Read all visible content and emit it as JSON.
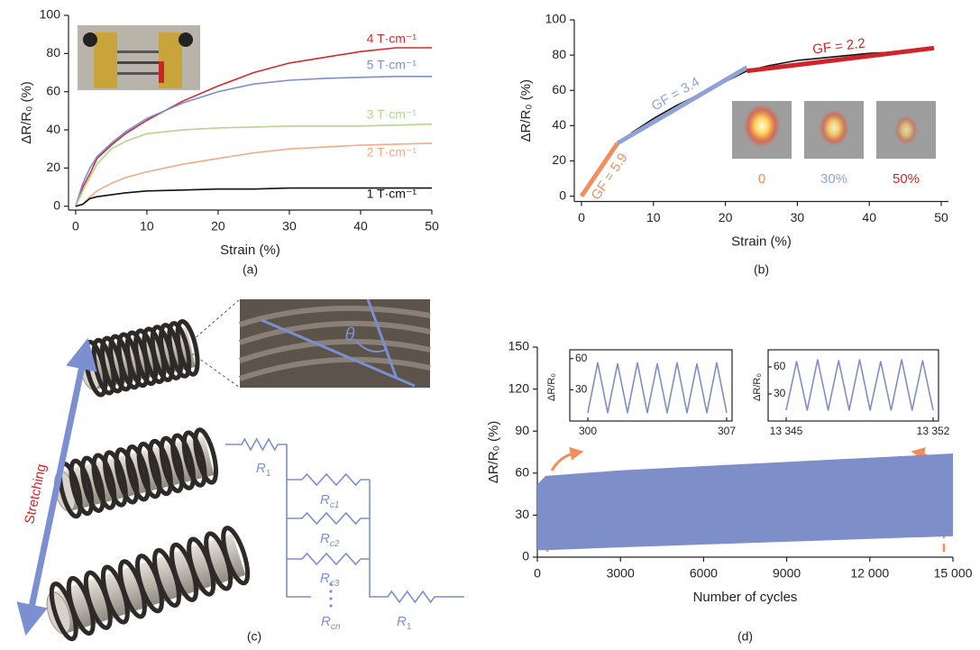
{
  "chart_data": [
    {
      "type": "line",
      "label": "(a)",
      "x_label": "Strain (%)",
      "y_label": "ΔR/R₀ (%)",
      "x": [
        0,
        1,
        2,
        3,
        5,
        7,
        10,
        15,
        20,
        25,
        30,
        35,
        40,
        45,
        50
      ],
      "series": [
        {
          "name": "4 T·cm⁻¹",
          "color": "#d42a2e",
          "values": [
            0,
            10,
            17,
            25,
            32,
            38,
            45,
            55,
            63,
            70,
            75,
            78,
            81,
            83,
            83
          ]
        },
        {
          "name": "5 T·cm⁻¹",
          "color": "#7b8fd1",
          "values": [
            0,
            12,
            20,
            26,
            33,
            39,
            46,
            54,
            60,
            64,
            66,
            67,
            67.5,
            68,
            68
          ]
        },
        {
          "name": "3 T·cm⁻¹",
          "color": "#b3d78c",
          "values": [
            0,
            8,
            15,
            22,
            30,
            34,
            38,
            40,
            41,
            41.5,
            42,
            42,
            42,
            42.5,
            43
          ]
        },
        {
          "name": "2 T·cm⁻¹",
          "color": "#f4a986",
          "values": [
            0,
            1,
            5,
            8,
            12,
            15,
            18,
            22,
            25,
            28,
            30,
            31,
            32,
            32.5,
            33
          ]
        },
        {
          "name": "1 T·cm⁻¹",
          "color": "#111111",
          "values": [
            0,
            1,
            4,
            5,
            6,
            7,
            8,
            8.5,
            9,
            9,
            9.5,
            9.5,
            9.5,
            9.5,
            9.5
          ]
        }
      ],
      "xlim": [
        -1,
        50
      ],
      "ylim": [
        -2,
        100
      ],
      "xticks": [
        0,
        10,
        20,
        30,
        40,
        50
      ],
      "yticks": [
        0,
        20,
        40,
        60,
        80,
        100
      ]
    },
    {
      "type": "line",
      "label": "(b)",
      "x_label": "Strain (%)",
      "y_label": "ΔR/R₀ (%)",
      "series": [
        {
          "color": "#111111",
          "x": [
            0,
            1,
            2,
            3,
            5,
            7,
            10,
            13,
            16,
            20,
            23,
            26,
            30,
            35,
            40,
            45,
            49
          ],
          "values": [
            0,
            6,
            11,
            17,
            29,
            36,
            44,
            51,
            57,
            65,
            71,
            74,
            77,
            79,
            81,
            82,
            84
          ]
        },
        {
          "name": "GF = 5.9",
          "color": "#f28e5c",
          "x": [
            0,
            5
          ],
          "values": [
            0,
            30
          ]
        },
        {
          "name": "GF = 3.4",
          "color": "#8fa2d8",
          "x": [
            5,
            23
          ],
          "values": [
            30,
            73
          ]
        },
        {
          "name": "GF = 2.2",
          "color": "#d1242a",
          "x": [
            23,
            49
          ],
          "values": [
            71,
            84
          ]
        }
      ],
      "insets": [
        {
          "label": "0",
          "color": "#f28e5c"
        },
        {
          "label": "30%",
          "color": "#8fa2d8"
        },
        {
          "label": "50%",
          "color": "#d1242a"
        }
      ],
      "xlim": [
        -1,
        51
      ],
      "ylim": [
        -3,
        100
      ],
      "xticks": [
        0,
        10,
        20,
        30,
        40,
        50
      ],
      "yticks": [
        0,
        20,
        40,
        60,
        80,
        100
      ]
    },
    {
      "type": "area",
      "label": "(d)",
      "x_label": "Number of cycles",
      "y_label": "ΔR/R₀ (%)",
      "x": [
        0,
        300,
        3000,
        6000,
        9000,
        12000,
        15000
      ],
      "color": "#7d8ec8",
      "series": [
        {
          "values": [
            52,
            58,
            62,
            65,
            68,
            71,
            74
          ]
        },
        {
          "values": [
            5,
            5,
            7,
            9,
            11,
            13,
            15
          ]
        }
      ],
      "xlim": [
        0,
        15000
      ],
      "ylim": [
        0,
        150
      ],
      "xticks": [
        0,
        3000,
        6000,
        9000,
        {
          "value": 12000,
          "label": "12 000"
        },
        {
          "value": 15000,
          "label": "15 000"
        }
      ],
      "yticks": [
        0,
        30,
        60,
        90,
        120,
        150
      ]
    },
    {
      "type": "line",
      "y_label": "ΔR/R₀",
      "x": [
        300,
        300.5,
        301,
        301.5,
        302,
        302.5,
        303,
        303.5,
        304,
        304.5,
        305,
        305.5,
        306,
        306.5,
        307
      ],
      "series": [
        {
          "color": "#7d8ec8",
          "values": [
            8,
            56,
            8,
            55,
            8,
            56,
            8,
            55,
            8,
            56,
            8,
            55,
            8,
            56,
            8
          ]
        }
      ],
      "xlim": [
        300,
        307
      ],
      "ylim": [
        0,
        65
      ],
      "xticks": [
        300,
        307
      ],
      "yticks": [
        30,
        60
      ]
    },
    {
      "type": "line",
      "y_label": "ΔR/R₀",
      "x": [
        13345,
        13345.5,
        13346,
        13346.5,
        13347,
        13347.5,
        13348,
        13348.5,
        13349,
        13349.5,
        13350,
        13350.5,
        13351,
        13351.5,
        13352
      ],
      "series": [
        {
          "color": "#7d8ec8",
          "values": [
            12,
            66,
            12,
            68,
            12,
            67,
            12,
            68,
            12,
            66,
            12,
            68,
            12,
            67,
            12
          ]
        }
      ],
      "xlim": [
        13345,
        13352
      ],
      "ylim": [
        0,
        75
      ],
      "xticks": [
        {
          "value": 13345,
          "label": "13 345"
        },
        {
          "value": 13352,
          "label": "13 352"
        }
      ],
      "yticks": [
        30,
        60
      ]
    }
  ],
  "diagram": {
    "label": "(c)",
    "arrow_label": "Stretching",
    "angle_label": "θ",
    "resistors": [
      {
        "symbol": "R",
        "subscript": "1"
      },
      {
        "symbol": "R",
        "subscript": "c1"
      },
      {
        "symbol": "R",
        "subscript": "c2"
      },
      {
        "symbol": "R",
        "subscript": "c3"
      },
      {
        "symbol": "R",
        "subscript": "cn"
      },
      {
        "symbol": "R",
        "subscript": "1"
      }
    ]
  }
}
